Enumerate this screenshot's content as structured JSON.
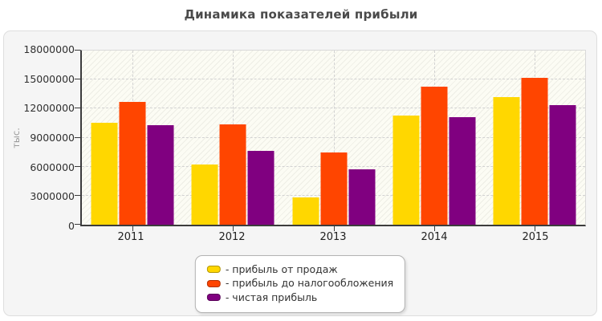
{
  "page": {
    "title": "Динамика показателей прибыли"
  },
  "chart_data": {
    "type": "bar",
    "title": "Динамика показателей прибыли",
    "xlabel": "",
    "ylabel": "тыс.",
    "categories": [
      "2011",
      "2012",
      "2013",
      "2014",
      "2015"
    ],
    "series": [
      {
        "name": "прибыль от продаж",
        "color": "#ffd700",
        "values": [
          10500000,
          6200000,
          2800000,
          11250000,
          13150000
        ]
      },
      {
        "name": "прибыль до налогообложения",
        "color": "#ff4500",
        "values": [
          12700000,
          10350000,
          7500000,
          14300000,
          15200000
        ]
      },
      {
        "name": "чистая прибыль",
        "color": "#800080",
        "values": [
          10300000,
          7650000,
          5750000,
          11150000,
          12350000
        ]
      }
    ],
    "ylim": [
      0,
      18000000
    ],
    "yticks": [
      0,
      3000000,
      6000000,
      9000000,
      12000000,
      15000000,
      18000000
    ],
    "ytick_labels": [
      "0",
      "3000000",
      "6000000",
      "9000000",
      "12000000",
      "15000000",
      "18000000"
    ],
    "grid": {
      "horizontal": "dashed",
      "vertical": "dashed"
    },
    "legend": {
      "position": "bottom-center",
      "items": [
        {
          "label": "- прибыль от продаж",
          "color": "#ffd700"
        },
        {
          "label": "- прибыль до налогообложения",
          "color": "#ff4500"
        },
        {
          "label": "- чистая прибыль",
          "color": "#800080"
        }
      ]
    }
  }
}
